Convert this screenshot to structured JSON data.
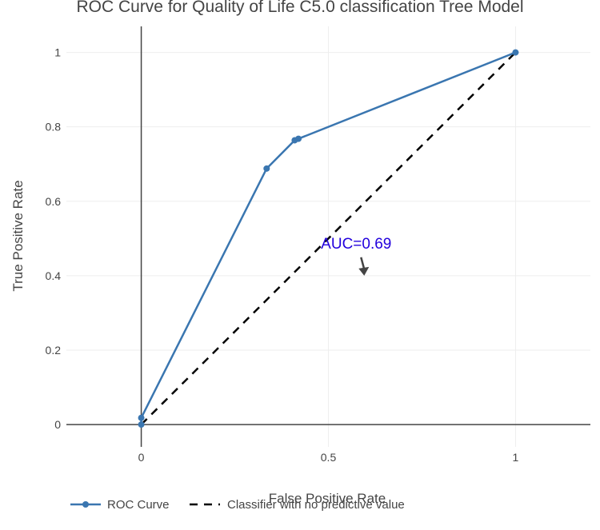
{
  "chart_data": {
    "type": "line",
    "title": "ROC Curve for Quality of Life C5.0 classification Tree Model",
    "xlabel": "False Positive Rate",
    "ylabel": "True Positive Rate",
    "xlim": [
      -0.2,
      1.2
    ],
    "ylim": [
      -0.06,
      1.07
    ],
    "x_ticks": [
      0,
      0.5,
      1
    ],
    "x_tick_labels": [
      "0",
      "0.5",
      "1"
    ],
    "y_ticks": [
      0,
      0.2,
      0.4,
      0.6,
      0.8,
      1
    ],
    "y_tick_labels": [
      "0",
      "0.2",
      "0.4",
      "0.6",
      "0.8",
      "1"
    ],
    "grid": true,
    "legend_position": "bottom-left",
    "series": [
      {
        "name": "ROC Curve",
        "style": "solid-markers",
        "color": "#3a76b0",
        "x": [
          0,
          0,
          0.335,
          0.41,
          0.42,
          1
        ],
        "y": [
          0,
          0.018,
          0.688,
          0.764,
          0.768,
          1
        ]
      },
      {
        "name": "Classifier with no predictive value",
        "style": "dashed",
        "color": "#000000",
        "x": [
          0,
          1
        ],
        "y": [
          0,
          1
        ]
      }
    ],
    "annotations": [
      {
        "text": "AUC=0.69",
        "color": "#2200dd",
        "x": 0.6,
        "y": 0.4
      }
    ]
  }
}
